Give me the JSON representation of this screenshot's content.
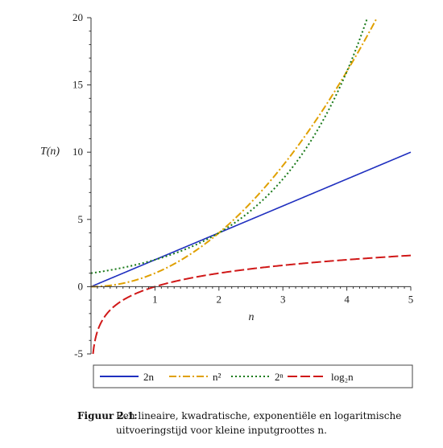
{
  "chart_data": {
    "type": "line",
    "title": "",
    "xlabel": "n",
    "ylabel": "T(n)",
    "xlim": [
      0,
      5
    ],
    "ylim": [
      -5,
      20
    ],
    "xticks": [
      1,
      2,
      3,
      4,
      5
    ],
    "yticks": [
      -5,
      0,
      5,
      10,
      15,
      20
    ],
    "grid": false,
    "legend_position": "bottom",
    "series": [
      {
        "name": "2n",
        "func": "2n",
        "color": "#1f2fbf",
        "dash": "solid",
        "x": [
          0,
          1,
          2,
          3,
          4,
          5
        ],
        "values": [
          0,
          2,
          4,
          6,
          8,
          10
        ]
      },
      {
        "name": "n²",
        "func": "n^2",
        "color": "#e0a000",
        "dash": "dashdot",
        "x": [
          0,
          1,
          2,
          3,
          4,
          4.47
        ],
        "values": [
          0,
          1,
          4,
          9,
          16,
          20
        ]
      },
      {
        "name": "2ⁿ",
        "func": "2^n",
        "color": "#1a7a1a",
        "dash": "dotted",
        "x": [
          0,
          1,
          2,
          3,
          4,
          4.32
        ],
        "values": [
          1,
          2,
          4,
          8,
          16,
          20
        ]
      },
      {
        "name": "log₂n",
        "func": "log2",
        "color": "#d01818",
        "dash": "longdash",
        "x": [
          0.03,
          0.5,
          1,
          2,
          3,
          4,
          5
        ],
        "values": [
          -5,
          -1,
          0,
          1,
          1.58,
          2,
          2.32
        ]
      }
    ]
  },
  "caption": {
    "label": "Figuur 2.1:",
    "text": "Een lineaire, kwadratische, exponentiële en logaritmische uitvoeringstijd voor kleine inputgroottes n."
  }
}
